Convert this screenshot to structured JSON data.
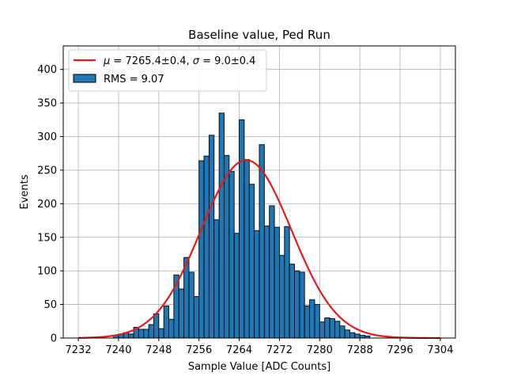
{
  "chart_data": {
    "type": "bar",
    "title": "Baseline value, Ped Run",
    "xlabel": "Sample Value [ADC Counts]",
    "ylabel": "Events",
    "xlim": [
      7229,
      7307
    ],
    "ylim": [
      0,
      435
    ],
    "x_ticks": [
      7232,
      7240,
      7248,
      7256,
      7264,
      7272,
      7280,
      7288,
      7296,
      7304
    ],
    "y_ticks": [
      0,
      50,
      100,
      150,
      200,
      250,
      300,
      350,
      400
    ],
    "grid": true,
    "legend_position": "top-left",
    "histogram": {
      "name": "RMS = 9.07",
      "bin_width": 1,
      "bin_start": 7239,
      "counts": [
        4,
        6,
        8,
        6,
        16,
        13,
        13,
        20,
        36,
        14,
        48,
        28,
        94,
        73,
        120,
        98,
        62,
        264,
        271,
        302,
        176,
        335,
        272,
        248,
        156,
        325,
        266,
        229,
        160,
        288,
        167,
        197,
        165,
        123,
        166,
        110,
        100,
        98,
        48,
        57,
        50,
        24,
        30,
        29,
        25,
        18,
        12,
        8,
        6,
        4,
        3
      ],
      "color": "#1f77b4",
      "edge_color": "#000000"
    },
    "fit": {
      "name": "$\\mu=$7265.4±0.4, $\\sigma=$9.0±0.4",
      "legend_label": {
        "mu_symbol": "μ",
        "mu_text": " = 7265.4±0.4, ",
        "sigma_symbol": "σ",
        "sigma_text": " = 9.0±0.4"
      },
      "type": "gaussian",
      "mu": 7265.4,
      "sigma": 9.0,
      "amplitude": 265,
      "x_range": [
        7232,
        7304
      ],
      "color": "#e41a1c"
    }
  }
}
